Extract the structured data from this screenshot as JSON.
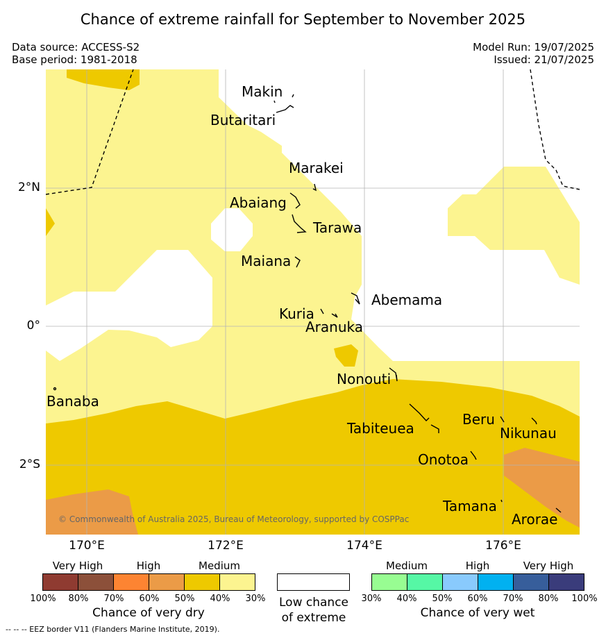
{
  "header": {
    "title": "Chance of extreme rainfall for September to November 2025",
    "data_source": "Data source: ACCESS-S2",
    "base_period": "Base period: 1981-2018",
    "model_run": "Model Run: 19/07/2025",
    "issued": "Issued: 21/07/2025"
  },
  "map": {
    "lat_labels": [
      "2°N",
      "0°",
      "2°S"
    ],
    "lon_labels": [
      "170°E",
      "172°E",
      "174°E",
      "176°E"
    ],
    "places": [
      "Makin",
      "Butaritari",
      "Marakei",
      "Abaiang",
      "Tarawa",
      "Maiana",
      "Abemama",
      "Kuria",
      "Aranuka",
      "Nonouti",
      "Banaba",
      "Tabiteuea",
      "Beru",
      "Nikunau",
      "Onotoa",
      "Tamana",
      "Arorae"
    ],
    "copyright": "© Commonwealth of Australia 2025, Bureau of Meteorology, supported by COSPPac",
    "colors": {
      "medium_dry": "#fcf490",
      "dry_50_60": "#eec900",
      "high_dry": "#eb9b47",
      "low": "#ffffff"
    }
  },
  "legend": {
    "dry": {
      "levels": [
        "Very High",
        "High",
        "Medium"
      ],
      "ticks": [
        "100%",
        "80%",
        "70%",
        "60%",
        "50%",
        "40%",
        "30%"
      ],
      "colors": [
        "#8f3b31",
        "#8c503a",
        "#fd8432",
        "#eb9b47",
        "#eec900",
        "#fcf490"
      ],
      "title": "Chance of very dry"
    },
    "low": {
      "line1": "Low chance",
      "line2": "of extreme"
    },
    "wet": {
      "levels": [
        "Medium",
        "High",
        "Very High"
      ],
      "ticks": [
        "30%",
        "40%",
        "50%",
        "60%",
        "70%",
        "80%",
        "100%"
      ],
      "colors": [
        "#98fd92",
        "#56f7a5",
        "#89cafd",
        "#01b1f0",
        "#375e9b",
        "#3a3c7b"
      ],
      "title": "Chance of very wet"
    },
    "eez_note": "--  --  -- EEZ border V11 (Flanders Marine Institute, 2019)."
  }
}
